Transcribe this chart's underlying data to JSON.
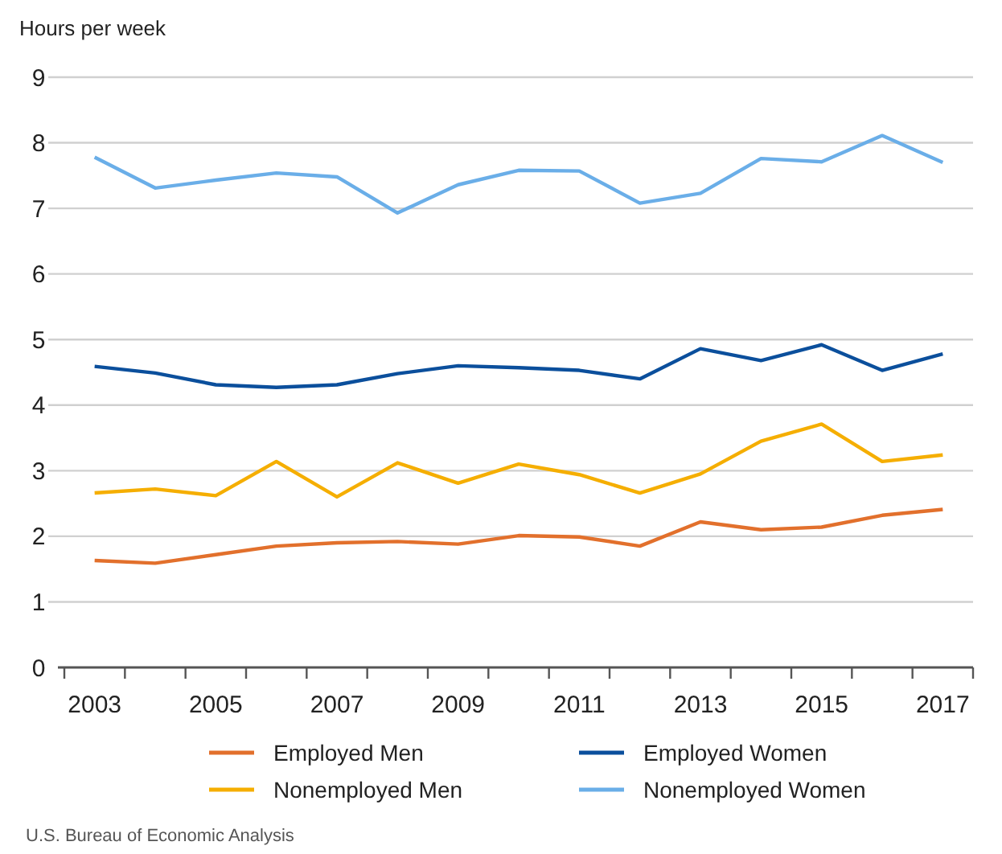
{
  "chart_data": {
    "type": "line",
    "ylabel": "Hours per week",
    "categories": [
      "2003",
      null,
      "2005",
      null,
      "2007",
      null,
      "2009",
      null,
      "2011",
      null,
      "2013",
      null,
      "2015",
      null,
      "2017"
    ],
    "series": [
      {
        "name": "Employed Men",
        "color": "#e2702c",
        "values": [
          1.63,
          1.59,
          1.72,
          1.85,
          1.9,
          1.92,
          1.88,
          2.01,
          1.99,
          1.85,
          2.22,
          2.1,
          2.14,
          2.32,
          2.41
        ]
      },
      {
        "name": "Employed Women",
        "color": "#0b4f9c",
        "values": [
          4.59,
          4.49,
          4.31,
          4.27,
          4.31,
          4.48,
          4.6,
          4.57,
          4.53,
          4.4,
          4.86,
          4.68,
          4.92,
          4.53,
          4.78
        ]
      },
      {
        "name": "Nonemployed Men",
        "color": "#f5ae00",
        "values": [
          2.66,
          2.72,
          2.62,
          3.14,
          2.6,
          3.12,
          2.81,
          3.1,
          2.94,
          2.66,
          2.95,
          3.45,
          3.71,
          3.14,
          3.24
        ]
      },
      {
        "name": "Nonemployed Women",
        "color": "#6aaee8",
        "values": [
          7.78,
          7.31,
          7.43,
          7.54,
          7.48,
          6.93,
          7.36,
          7.58,
          7.57,
          7.08,
          7.23,
          7.76,
          7.71,
          8.11,
          7.7
        ]
      }
    ],
    "ylim": [
      0,
      9
    ],
    "yticks": [
      0,
      1,
      2,
      3,
      4,
      5,
      6,
      7,
      8,
      9
    ],
    "grid": "y",
    "legend": "bottom",
    "line_style": "solid",
    "marker": "none",
    "annotations": [
      "U.S. Bureau of Economic Analysis"
    ]
  }
}
